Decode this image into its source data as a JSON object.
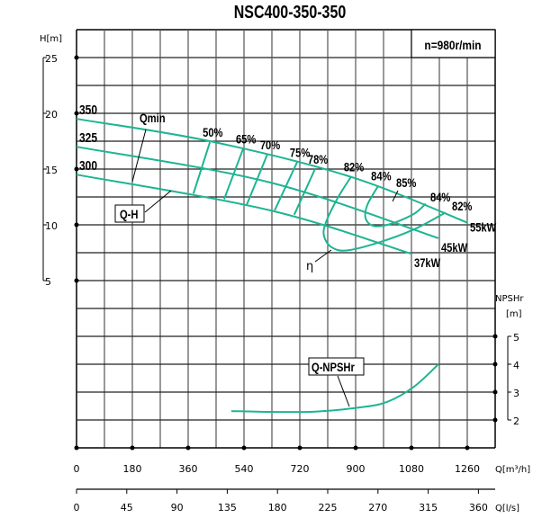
{
  "chart_data": {
    "type": "line",
    "title": "NSC400-350-350",
    "speed_label": "n=980r/min",
    "x_axis": {
      "label": "Q[m³/h]",
      "range": [
        0,
        1350
      ],
      "ticks": [
        0,
        180,
        360,
        540,
        720,
        900,
        1080,
        1260
      ]
    },
    "x_axis_secondary": {
      "label": "Q[l/s]",
      "range": [
        0,
        375
      ],
      "ticks": [
        0,
        45,
        90,
        135,
        180,
        225,
        270,
        315,
        360
      ]
    },
    "y_axis": {
      "label": "H[m]",
      "range": [
        0,
        27.5
      ],
      "ticks": [
        5,
        10,
        15,
        20,
        25
      ]
    },
    "y_axis_secondary": {
      "label_line1": "NPSHr",
      "label_line2": "[m]",
      "range": [
        1,
        5
      ],
      "ticks": [
        2,
        3,
        4,
        5
      ]
    },
    "grid": true,
    "curve_color": "#1db592",
    "head_curves": [
      {
        "name": "350",
        "power": "55kW",
        "points": [
          [
            0,
            19.5
          ],
          [
            430,
            17.5
          ],
          [
            885,
            14.3
          ],
          [
            1260,
            10.2
          ]
        ]
      },
      {
        "name": "325",
        "power": "45kW",
        "points": [
          [
            0,
            17.0
          ],
          [
            624,
            13.8
          ],
          [
            1167,
            8.8
          ]
        ]
      },
      {
        "name": "300",
        "power": "37kW",
        "points": [
          [
            0,
            14.5
          ],
          [
            624,
            11.3
          ],
          [
            1080,
            7.4
          ]
        ]
      }
    ],
    "efficiency_lines": [
      {
        "name": "50%",
        "points": [
          [
            430,
            17.4
          ],
          [
            377,
            12.8
          ]
        ]
      },
      {
        "name": "65%",
        "points": [
          [
            537,
            16.8
          ],
          [
            476,
            12.3
          ]
        ]
      },
      {
        "name": "70%",
        "points": [
          [
            615,
            16.3
          ],
          [
            549,
            11.8
          ]
        ]
      },
      {
        "name": "75%",
        "points": [
          [
            711,
            15.6
          ],
          [
            639,
            11.3
          ]
        ]
      },
      {
        "name": "78%",
        "points": [
          [
            769,
            15.0
          ],
          [
            702,
            10.9
          ]
        ]
      },
      {
        "name": "82%",
        "points": [
          [
            885,
            14.3
          ],
          [
            842,
            12.4
          ],
          [
            804,
            10.2
          ],
          [
            798,
            9.0
          ],
          [
            822,
            8.0
          ],
          [
            871,
            7.7
          ],
          [
            973,
            8.4
          ],
          [
            1089,
            9.6
          ],
          [
            1190,
            11.1
          ]
        ]
      },
      {
        "name": "84%",
        "points": [
          [
            973,
            13.5
          ],
          [
            938,
            11.8
          ],
          [
            932,
            10.6
          ],
          [
            958,
            9.9
          ],
          [
            1016,
            10.1
          ],
          [
            1089,
            11.0
          ],
          [
            1126,
            11.9
          ]
        ]
      }
    ],
    "right_labels": [
      "84%",
      "82%"
    ],
    "peak_label": "85%",
    "npshr_curve": {
      "name": "Q-NPSHr",
      "points": [
        [
          499,
          2.32
        ],
        [
          624,
          2.29
        ],
        [
          769,
          2.3
        ],
        [
          914,
          2.45
        ],
        [
          1002,
          2.65
        ],
        [
          1089,
          3.2
        ],
        [
          1167,
          4.0
        ]
      ]
    },
    "annotations": {
      "qmin": "Qmin",
      "qh": "Q-H",
      "eta": "η",
      "npshr": "Q-NPSHr"
    }
  }
}
